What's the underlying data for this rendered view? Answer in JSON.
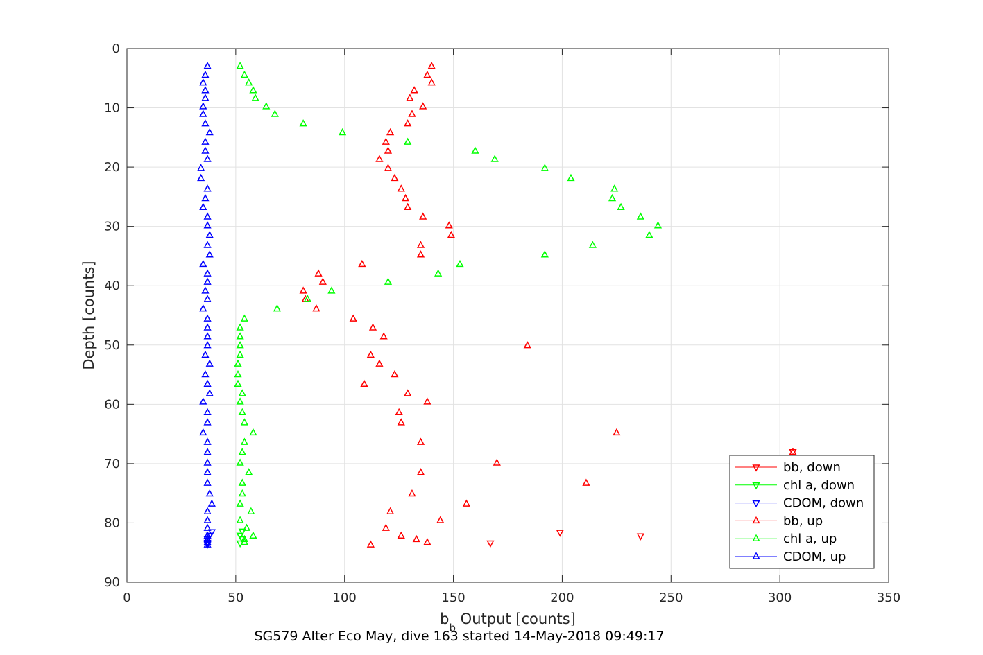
{
  "chart_data": {
    "type": "scatter",
    "xlabel_main": "b",
    "xlabel_sub": "b",
    "xlabel_rest": " Output [counts]",
    "ylabel": "Depth [counts]",
    "caption": "SG579 Alter Eco May, dive 163 started 14-May-2018 09:49:17",
    "xlim": [
      0,
      350
    ],
    "ylim": [
      0,
      90
    ],
    "y_reversed": true,
    "xticks": [
      0,
      50,
      100,
      150,
      200,
      250,
      300,
      350
    ],
    "yticks": [
      0,
      10,
      20,
      30,
      40,
      50,
      60,
      70,
      80,
      90
    ],
    "grid": true,
    "legend_position": "bottom-right",
    "series": [
      {
        "name": "bb, down",
        "color": "#ff0000",
        "marker": "triangle-down",
        "points": [
          [
            306,
            68
          ],
          [
            199,
            81.6
          ],
          [
            236,
            82.2
          ],
          [
            167,
            83.4
          ]
        ]
      },
      {
        "name": "chl a, down",
        "color": "#00ff00",
        "marker": "triangle-down",
        "points": [
          [
            53,
            81.4
          ],
          [
            52,
            82.1
          ],
          [
            53,
            82.7
          ],
          [
            52,
            83.4
          ]
        ]
      },
      {
        "name": "CDOM, down",
        "color": "#0000ff",
        "marker": "triangle-down",
        "points": [
          [
            39,
            81.5
          ],
          [
            38,
            82.1
          ],
          [
            37,
            82.7
          ],
          [
            37,
            83.3
          ],
          [
            37,
            83.6
          ]
        ]
      },
      {
        "name": "bb, up",
        "color": "#ff0000",
        "marker": "triangle-up",
        "points": [
          [
            140,
            3
          ],
          [
            138,
            4.5
          ],
          [
            140,
            5.8
          ],
          [
            132,
            7.1
          ],
          [
            130,
            8.4
          ],
          [
            136,
            9.8
          ],
          [
            131,
            11.1
          ],
          [
            129,
            12.7
          ],
          [
            121,
            14.2
          ],
          [
            119,
            15.8
          ],
          [
            120,
            17.3
          ],
          [
            116,
            18.7
          ],
          [
            120,
            20.2
          ],
          [
            123,
            21.9
          ],
          [
            126,
            23.7
          ],
          [
            128,
            25.3
          ],
          [
            129,
            26.8
          ],
          [
            136,
            28.4
          ],
          [
            148,
            29.9
          ],
          [
            149,
            31.5
          ],
          [
            135,
            33.2
          ],
          [
            135,
            34.8
          ],
          [
            108,
            36.4
          ],
          [
            88,
            38
          ],
          [
            90,
            39.4
          ],
          [
            81,
            40.9
          ],
          [
            82,
            42.3
          ],
          [
            87,
            43.9
          ],
          [
            104,
            45.6
          ],
          [
            113,
            47.1
          ],
          [
            118,
            48.6
          ],
          [
            184,
            50.1
          ],
          [
            112,
            51.7
          ],
          [
            116,
            53.2
          ],
          [
            123,
            55
          ],
          [
            109,
            56.6
          ],
          [
            129,
            58.2
          ],
          [
            138,
            59.6
          ],
          [
            125,
            61.4
          ],
          [
            126,
            63.1
          ],
          [
            225,
            64.8
          ],
          [
            135,
            66.4
          ],
          [
            306,
            68.1
          ],
          [
            170,
            69.9
          ],
          [
            135,
            71.5
          ],
          [
            211,
            73.3
          ],
          [
            131,
            75.1
          ],
          [
            156,
            76.8
          ],
          [
            121,
            78.1
          ],
          [
            144,
            79.6
          ],
          [
            119,
            80.9
          ],
          [
            126,
            82.2
          ],
          [
            133,
            82.8
          ],
          [
            138,
            83.3
          ],
          [
            112,
            83.7
          ]
        ]
      },
      {
        "name": "chl a, up",
        "color": "#00ff00",
        "marker": "triangle-up",
        "points": [
          [
            52,
            3
          ],
          [
            54,
            4.5
          ],
          [
            56,
            5.8
          ],
          [
            58,
            7.1
          ],
          [
            59,
            8.4
          ],
          [
            64,
            9.8
          ],
          [
            68,
            11.1
          ],
          [
            81,
            12.7
          ],
          [
            99,
            14.2
          ],
          [
            129,
            15.8
          ],
          [
            160,
            17.3
          ],
          [
            169,
            18.7
          ],
          [
            192,
            20.2
          ],
          [
            204,
            21.9
          ],
          [
            224,
            23.7
          ],
          [
            223,
            25.3
          ],
          [
            227,
            26.8
          ],
          [
            236,
            28.4
          ],
          [
            244,
            29.9
          ],
          [
            240,
            31.5
          ],
          [
            214,
            33.2
          ],
          [
            192,
            34.8
          ],
          [
            153,
            36.4
          ],
          [
            143,
            38
          ],
          [
            120,
            39.4
          ],
          [
            94,
            40.9
          ],
          [
            83,
            42.3
          ],
          [
            69,
            43.9
          ],
          [
            54,
            45.6
          ],
          [
            52,
            47.1
          ],
          [
            52,
            48.6
          ],
          [
            52,
            50.1
          ],
          [
            52,
            51.7
          ],
          [
            51,
            53.2
          ],
          [
            51,
            55
          ],
          [
            51,
            56.6
          ],
          [
            53,
            58.2
          ],
          [
            52,
            59.6
          ],
          [
            53,
            61.4
          ],
          [
            54,
            63.1
          ],
          [
            58,
            64.8
          ],
          [
            54,
            66.4
          ],
          [
            53,
            68.1
          ],
          [
            52,
            69.9
          ],
          [
            56,
            71.5
          ],
          [
            53,
            73.3
          ],
          [
            53,
            75.1
          ],
          [
            52,
            76.8
          ],
          [
            57,
            78.1
          ],
          [
            52,
            79.6
          ],
          [
            55,
            80.9
          ],
          [
            58,
            82.2
          ],
          [
            54,
            82.8
          ],
          [
            54,
            83.3
          ]
        ]
      },
      {
        "name": "CDOM, up",
        "color": "#0000ff",
        "marker": "triangle-up",
        "points": [
          [
            37,
            3
          ],
          [
            36,
            4.5
          ],
          [
            35,
            5.8
          ],
          [
            36,
            7.1
          ],
          [
            36,
            8.4
          ],
          [
            35,
            9.8
          ],
          [
            35,
            11.1
          ],
          [
            36,
            12.7
          ],
          [
            38,
            14.2
          ],
          [
            36,
            15.8
          ],
          [
            36,
            17.3
          ],
          [
            37,
            18.7
          ],
          [
            34,
            20.2
          ],
          [
            34,
            21.9
          ],
          [
            37,
            23.7
          ],
          [
            36,
            25.3
          ],
          [
            35,
            26.8
          ],
          [
            37,
            28.4
          ],
          [
            37,
            29.9
          ],
          [
            38,
            31.5
          ],
          [
            37,
            33.2
          ],
          [
            38,
            34.8
          ],
          [
            35,
            36.4
          ],
          [
            37,
            38
          ],
          [
            37,
            39.4
          ],
          [
            36,
            40.9
          ],
          [
            37,
            42.3
          ],
          [
            35,
            43.9
          ],
          [
            37,
            45.6
          ],
          [
            37,
            47.1
          ],
          [
            37,
            48.6
          ],
          [
            37,
            50.1
          ],
          [
            36,
            51.7
          ],
          [
            38,
            53.2
          ],
          [
            36,
            55
          ],
          [
            37,
            56.6
          ],
          [
            38,
            58.2
          ],
          [
            35,
            59.6
          ],
          [
            37,
            61.4
          ],
          [
            37,
            63.1
          ],
          [
            35,
            64.8
          ],
          [
            37,
            66.4
          ],
          [
            37,
            68.1
          ],
          [
            37,
            69.9
          ],
          [
            37,
            71.5
          ],
          [
            37,
            73.3
          ],
          [
            38,
            75.1
          ],
          [
            39,
            76.8
          ],
          [
            37,
            78.1
          ],
          [
            37,
            79.6
          ],
          [
            37,
            80.9
          ],
          [
            37,
            82.2
          ],
          [
            37,
            82.8
          ],
          [
            37,
            83.3
          ],
          [
            37,
            83.7
          ]
        ]
      }
    ]
  }
}
